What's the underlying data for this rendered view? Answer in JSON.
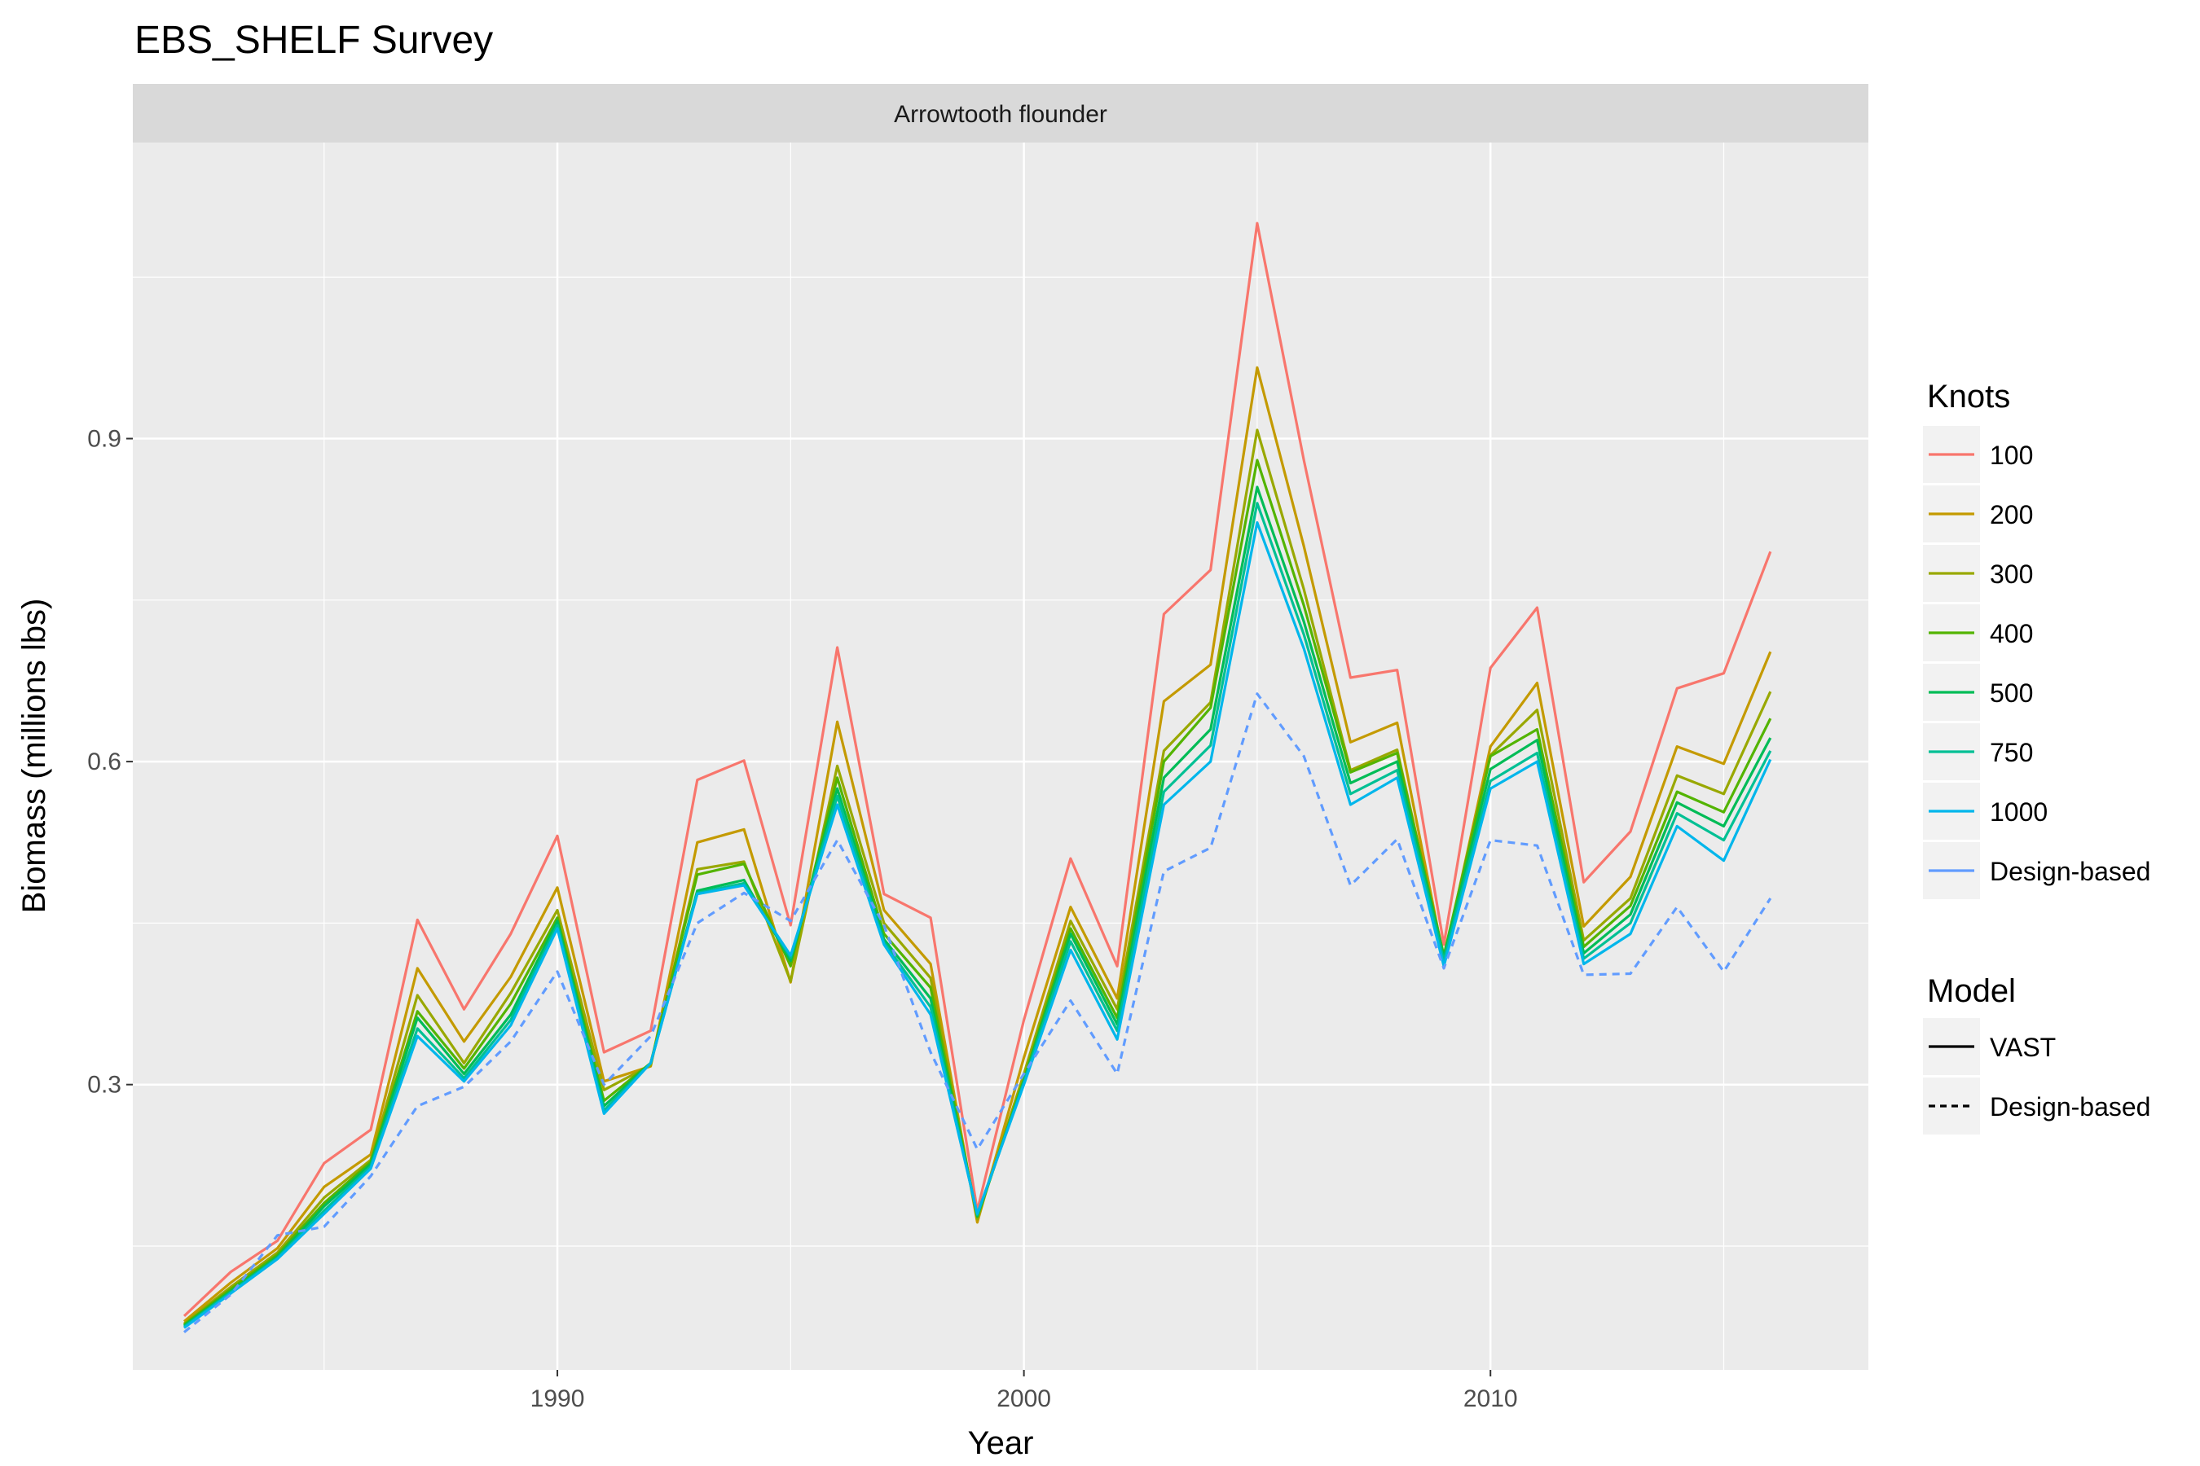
{
  "title": "EBS_SHELF Survey",
  "chart_data": {
    "type": "line",
    "title": "EBS_SHELF Survey",
    "facet": "Arrowtooth flounder",
    "xlabel": "Year",
    "ylabel": "Biomass (millions lbs)",
    "xlim": [
      1980.9,
      2018.1
    ],
    "ylim": [
      0.035,
      1.175
    ],
    "x_ticks": [
      1990,
      2000,
      2010
    ],
    "y_ticks": [
      0.3,
      0.6,
      0.9
    ],
    "grid": true,
    "x": [
      1982,
      1983,
      1984,
      1985,
      1986,
      1987,
      1988,
      1989,
      1990,
      1991,
      1992,
      1993,
      1994,
      1995,
      1996,
      1997,
      1998,
      1999,
      2000,
      2001,
      2002,
      2003,
      2004,
      2005,
      2006,
      2007,
      2008,
      2009,
      2010,
      2011,
      2012,
      2013,
      2014,
      2015,
      2016
    ],
    "series": [
      {
        "name": "100",
        "model": "VAST",
        "color": "#F8766D",
        "values": [
          0.085,
          0.126,
          0.155,
          0.227,
          0.258,
          0.453,
          0.37,
          0.44,
          0.531,
          0.33,
          0.35,
          0.583,
          0.601,
          0.448,
          0.706,
          0.477,
          0.455,
          0.183,
          0.36,
          0.51,
          0.41,
          0.737,
          0.778,
          1.1,
          0.88,
          0.678,
          0.685,
          0.43,
          0.687,
          0.743,
          0.488,
          0.535,
          0.668,
          0.682,
          0.795
        ]
      },
      {
        "name": "200",
        "model": "VAST",
        "color": "#C49A00",
        "values": [
          0.08,
          0.116,
          0.148,
          0.205,
          0.235,
          0.408,
          0.34,
          0.4,
          0.483,
          0.303,
          0.317,
          0.525,
          0.537,
          0.395,
          0.637,
          0.462,
          0.412,
          0.172,
          0.325,
          0.465,
          0.38,
          0.656,
          0.69,
          0.966,
          0.8,
          0.618,
          0.636,
          0.416,
          0.614,
          0.673,
          0.447,
          0.493,
          0.614,
          0.598,
          0.702
        ]
      },
      {
        "name": "300",
        "model": "VAST",
        "color": "#99A800",
        "values": [
          0.078,
          0.112,
          0.144,
          0.195,
          0.23,
          0.383,
          0.32,
          0.385,
          0.462,
          0.295,
          0.318,
          0.5,
          0.507,
          0.396,
          0.596,
          0.45,
          0.399,
          0.175,
          0.31,
          0.452,
          0.37,
          0.61,
          0.655,
          0.908,
          0.76,
          0.592,
          0.611,
          0.418,
          0.606,
          0.648,
          0.434,
          0.473,
          0.587,
          0.57,
          0.665
        ]
      },
      {
        "name": "400",
        "model": "VAST",
        "color": "#53B400",
        "values": [
          0.077,
          0.11,
          0.142,
          0.19,
          0.228,
          0.368,
          0.315,
          0.375,
          0.455,
          0.285,
          0.32,
          0.495,
          0.505,
          0.41,
          0.585,
          0.44,
          0.39,
          0.177,
          0.305,
          0.445,
          0.362,
          0.6,
          0.65,
          0.88,
          0.745,
          0.59,
          0.608,
          0.42,
          0.605,
          0.63,
          0.428,
          0.466,
          0.572,
          0.553,
          0.64
        ]
      },
      {
        "name": "500",
        "model": "VAST",
        "color": "#00BC56",
        "values": [
          0.076,
          0.108,
          0.14,
          0.187,
          0.226,
          0.362,
          0.31,
          0.365,
          0.452,
          0.28,
          0.32,
          0.48,
          0.49,
          0.415,
          0.575,
          0.435,
          0.38,
          0.178,
          0.303,
          0.44,
          0.356,
          0.585,
          0.63,
          0.855,
          0.73,
          0.58,
          0.6,
          0.418,
          0.593,
          0.62,
          0.422,
          0.458,
          0.562,
          0.54,
          0.622
        ]
      },
      {
        "name": "750",
        "model": "VAST",
        "color": "#00C094",
        "values": [
          0.075,
          0.107,
          0.139,
          0.183,
          0.224,
          0.352,
          0.306,
          0.36,
          0.448,
          0.276,
          0.32,
          0.478,
          0.487,
          0.418,
          0.568,
          0.432,
          0.372,
          0.179,
          0.302,
          0.433,
          0.35,
          0.572,
          0.615,
          0.84,
          0.718,
          0.57,
          0.592,
          0.415,
          0.582,
          0.608,
          0.417,
          0.45,
          0.552,
          0.527,
          0.61
        ]
      },
      {
        "name": "1000",
        "model": "VAST",
        "color": "#00B6EB",
        "values": [
          0.074,
          0.106,
          0.138,
          0.18,
          0.222,
          0.345,
          0.303,
          0.355,
          0.445,
          0.273,
          0.32,
          0.477,
          0.485,
          0.42,
          0.56,
          0.43,
          0.365,
          0.18,
          0.3,
          0.425,
          0.342,
          0.56,
          0.6,
          0.822,
          0.705,
          0.56,
          0.585,
          0.41,
          0.575,
          0.6,
          0.412,
          0.44,
          0.54,
          0.508,
          0.602
        ]
      },
      {
        "name": "Design-based",
        "model": "Design-based",
        "color": "#619CFF",
        "values": [
          0.07,
          0.105,
          0.16,
          0.168,
          0.215,
          0.28,
          0.298,
          0.34,
          0.405,
          0.3,
          0.345,
          0.45,
          0.478,
          0.452,
          0.527,
          0.448,
          0.33,
          0.24,
          0.31,
          0.378,
          0.31,
          0.498,
          0.52,
          0.663,
          0.605,
          0.485,
          0.528,
          0.408,
          0.527,
          0.522,
          0.402,
          0.403,
          0.465,
          0.405,
          0.473
        ]
      }
    ],
    "legend": {
      "position": "right",
      "knots_title": "Knots",
      "model_title": "Model",
      "model_labels": [
        "VAST",
        "Design-based"
      ]
    }
  }
}
